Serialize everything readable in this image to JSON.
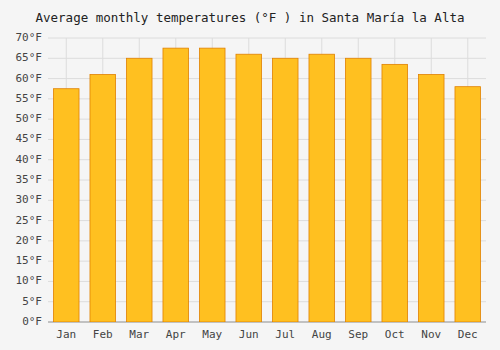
{
  "chart_data": {
    "type": "bar",
    "title": "Average monthly temperatures (°F ) in Santa María la Alta",
    "categories": [
      "Jan",
      "Feb",
      "Mar",
      "Apr",
      "May",
      "Jun",
      "Jul",
      "Aug",
      "Sep",
      "Oct",
      "Nov",
      "Dec"
    ],
    "values": [
      57.5,
      61.0,
      65.0,
      67.5,
      67.5,
      66.0,
      65.0,
      66.0,
      65.0,
      63.5,
      61.0,
      58.0
    ],
    "color": "#FFC020",
    "ylim": [
      0,
      70
    ],
    "yticks": [
      {
        "value": 0,
        "label": "0°F"
      },
      {
        "value": 5,
        "label": "5°F"
      },
      {
        "value": 10,
        "label": "10°F"
      },
      {
        "value": 15,
        "label": "15°F"
      },
      {
        "value": 20,
        "label": "20°F"
      },
      {
        "value": 25,
        "label": "25°F"
      },
      {
        "value": 30,
        "label": "30°F"
      },
      {
        "value": 35,
        "label": "35°F"
      },
      {
        "value": 40,
        "label": "40°F"
      },
      {
        "value": 45,
        "label": "45°F"
      },
      {
        "value": 50,
        "label": "50°F"
      },
      {
        "value": 55,
        "label": "55°F"
      },
      {
        "value": 60,
        "label": "60°F"
      },
      {
        "value": 65,
        "label": "65°F"
      },
      {
        "value": 70,
        "label": "70°F"
      }
    ],
    "grid": true
  }
}
